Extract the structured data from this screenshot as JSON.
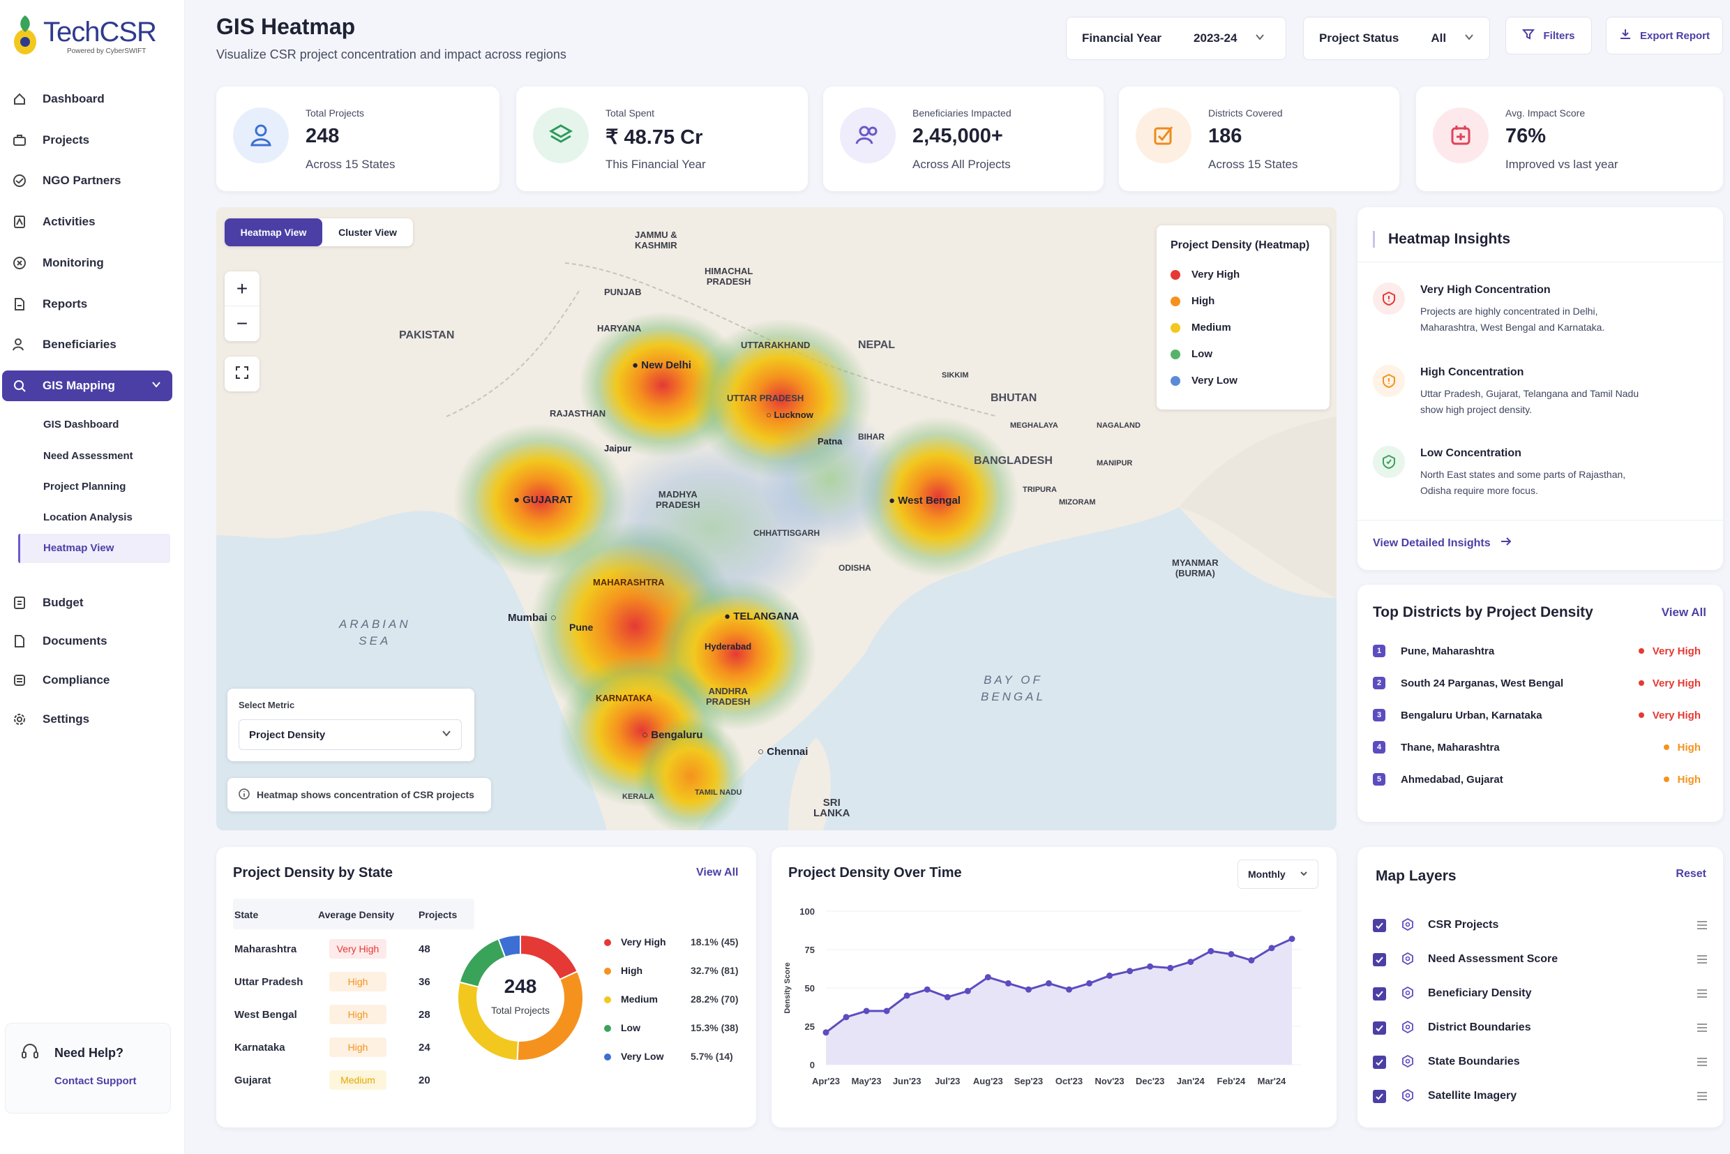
{
  "brand": {
    "name": "TechCSR",
    "tagline": "Powered by CyberSWIFT"
  },
  "sidebar": {
    "items": [
      {
        "label": "Dashboard",
        "icon": "home-icon"
      },
      {
        "label": "Projects",
        "icon": "briefcase-icon"
      },
      {
        "label": "NGO Partners",
        "icon": "handshake-icon"
      },
      {
        "label": "Activities",
        "icon": "activity-icon"
      },
      {
        "label": "Monitoring",
        "icon": "monitoring-icon"
      },
      {
        "label": "Reports",
        "icon": "report-icon"
      },
      {
        "label": "Beneficiaries",
        "icon": "users-icon"
      },
      {
        "label": "GIS Mapping",
        "icon": "map-pin-icon"
      },
      {
        "label": "Budget",
        "icon": "budget-icon"
      },
      {
        "label": "Documents",
        "icon": "document-icon"
      },
      {
        "label": "Compliance",
        "icon": "compliance-icon"
      },
      {
        "label": "Settings",
        "icon": "gear-icon"
      }
    ],
    "gis_sub": [
      "GIS Dashboard",
      "Need Assessment",
      "Project Planning",
      "Location Analysis",
      "Heatmap View"
    ],
    "help": {
      "title": "Need Help?",
      "link": "Contact Support"
    }
  },
  "header": {
    "title": "GIS Heatmap",
    "subtitle": "Visualize CSR project concentration and impact across regions",
    "fy_label": "Financial Year",
    "fy_value": "2023-24",
    "status_label": "Project Status",
    "status_value": "All",
    "filters": "Filters",
    "export": "Export Report"
  },
  "kpis": [
    {
      "label": "Total Projects",
      "value": "248",
      "note": "Across 15 States",
      "color": "#3b6fd4",
      "bg": "#e8effc"
    },
    {
      "label": "Total Spent",
      "value": "₹ 48.75 Cr",
      "note": "This Financial Year",
      "color": "#2e9b5c",
      "bg": "#e6f5ec"
    },
    {
      "label": "Beneficiaries Impacted",
      "value": "2,45,000+",
      "note": "Across All Projects",
      "color": "#6a58c8",
      "bg": "#efecfb"
    },
    {
      "label": "Districts Covered",
      "value": "186",
      "note": "Across 15 States",
      "color": "#f08a1c",
      "bg": "#fdf0e2"
    },
    {
      "label": "Avg. Impact Score",
      "value": "76%",
      "note": "Improved vs last year",
      "color": "#e0435a",
      "bg": "#fde9ec"
    }
  ],
  "map": {
    "tabs": [
      "Heatmap View",
      "Cluster View"
    ],
    "legend_title": "Project Density (Heatmap)",
    "legend": [
      {
        "label": "Very High",
        "color": "#e53935"
      },
      {
        "label": "High",
        "color": "#f5921e"
      },
      {
        "label": "Medium",
        "color": "#f2c81e"
      },
      {
        "label": "Low",
        "color": "#56b46a"
      },
      {
        "label": "Very Low",
        "color": "#5b8ad6"
      }
    ],
    "metric_label": "Select Metric",
    "metric_value": "Project Density",
    "note": "Heatmap shows concentration of CSR projects",
    "labels": {
      "jk": "JAMMU &\nKASHMIR",
      "hp": "HIMACHAL\nPRADESH",
      "punjab": "PUNJAB",
      "haryana": "HARYANA",
      "uk": "UTTARAKHAND",
      "pakistan": "PAKISTAN",
      "nepal": "NEPAL",
      "rajasthan": "RAJASTHAN",
      "up": "UTTAR PRADESH",
      "sikkim": "SIKKIM",
      "bhutan": "BHUTAN",
      "meghalaya": "MEGHALAYA",
      "nagaland": "NAGALAND",
      "bihar": "BIHAR",
      "bangladesh": "BANGLADESH",
      "manipur": "MANIPUR",
      "tripura": "TRIPURA",
      "mizoram": "MIZORAM",
      "mp": "MADHYA\nPRADESH",
      "chhattisgarh": "CHHATTISGARH",
      "odisha": "ODISHA",
      "myanmar": "MYANMAR\n(BURMA)",
      "maharashtra": "MAHARASHTRA",
      "arabian": "ARABIAN\nSEA",
      "ap": "ANDHRA\nPRADESH",
      "karnataka": "KARNATAKA",
      "bay": "BAY OF\nBENGAL",
      "kerala": "KERALA",
      "srilanka": "SRI\nLANKA",
      "tn": "TAMIL NADU"
    },
    "cities": {
      "delhi": "New Delhi",
      "lucknow": "Lucknow",
      "patna": "Patna",
      "jaipur": "Jaipur",
      "gujarat": "GUJARAT",
      "westbengal": "West Bengal",
      "mumbai": "Mumbai",
      "pune": "Pune",
      "telangana": "TELANGANA",
      "hyderabad": "Hyderabad",
      "bengaluru": "Bengaluru",
      "chennai": "Chennai"
    }
  },
  "insights": {
    "title": "Heatmap Insights",
    "items": [
      {
        "title": "Very High Concentration",
        "text": "Projects are highly concentrated in Delhi, Maharashtra, West Bengal and Karnataka.",
        "color": "#e53935",
        "bg": "#fdecec"
      },
      {
        "title": "High Concentration",
        "text": "Uttar Pradesh, Gujarat, Telangana and Tamil Nadu show high project density.",
        "color": "#f5921e",
        "bg": "#fef3e6"
      },
      {
        "title": "Low Concentration",
        "text": "North East states and some parts of Rajasthan, Odisha require more focus.",
        "color": "#3aa35a",
        "bg": "#e8f6ec"
      }
    ],
    "link": "View Detailed Insights"
  },
  "top_districts": {
    "title": "Top Districts by Project Density",
    "view_all": "View All",
    "rows": [
      {
        "n": "1",
        "name": "Pune, Maharashtra",
        "level": "Very High",
        "color": "#e53935"
      },
      {
        "n": "2",
        "name": "South 24 Parganas, West Bengal",
        "level": "Very High",
        "color": "#e53935"
      },
      {
        "n": "3",
        "name": "Bengaluru Urban, Karnataka",
        "level": "Very High",
        "color": "#e53935"
      },
      {
        "n": "4",
        "name": "Thane, Maharashtra",
        "level": "High",
        "color": "#f5921e"
      },
      {
        "n": "5",
        "name": "Ahmedabad, Gujarat",
        "level": "High",
        "color": "#f5921e"
      }
    ]
  },
  "state_density": {
    "title": "Project Density by State",
    "view_all": "View All",
    "headers": [
      "State",
      "Average Density",
      "Projects"
    ],
    "rows": [
      {
        "state": "Maharashtra",
        "density": "Very High",
        "projects": "48",
        "color": "#e53935",
        "bg": "#fdeaea"
      },
      {
        "state": "Uttar Pradesh",
        "density": "High",
        "projects": "36",
        "color": "#f5921e",
        "bg": "#fef1e2"
      },
      {
        "state": "West Bengal",
        "density": "High",
        "projects": "28",
        "color": "#f5921e",
        "bg": "#fef1e2"
      },
      {
        "state": "Karnataka",
        "density": "High",
        "projects": "24",
        "color": "#f5921e",
        "bg": "#fef1e2"
      },
      {
        "state": "Gujarat",
        "density": "Medium",
        "projects": "20",
        "color": "#e0a800",
        "bg": "#fdf6dc"
      }
    ],
    "donut": {
      "total": "248",
      "total_label": "Total Projects"
    },
    "donut_legend": [
      {
        "label": "Very High",
        "value": "18.1% (45)",
        "color": "#e53935",
        "pct": 18.1
      },
      {
        "label": "High",
        "value": "32.7% (81)",
        "color": "#f5921e",
        "pct": 32.7
      },
      {
        "label": "Medium",
        "value": "28.2% (70)",
        "color": "#f2c81e",
        "pct": 28.2
      },
      {
        "label": "Low",
        "value": "15.3% (38)",
        "color": "#3aa35a",
        "pct": 15.3
      },
      {
        "label": "Very Low",
        "value": "5.7% (14)",
        "color": "#3b6fd4",
        "pct": 5.7
      }
    ]
  },
  "density_time": {
    "title": "Project Density Over Time",
    "period": "Monthly"
  },
  "chart_data": {
    "type": "area",
    "title": "Project Density Over Time",
    "ylabel": "Density Score",
    "xlabel": "",
    "ylim": [
      0,
      100
    ],
    "yticks": [
      0,
      25,
      50,
      75,
      100
    ],
    "x_ticks": [
      "Apr'23",
      "May'23",
      "Jun'23",
      "Jul'23",
      "Aug'23",
      "Sep'23",
      "Oct'23",
      "Nov'23",
      "Dec'23",
      "Jan'24",
      "Feb'24",
      "Mar'24"
    ],
    "series": [
      {
        "values": [
          21,
          31,
          35,
          35,
          45,
          49,
          44,
          48,
          57,
          53,
          49,
          53,
          49,
          53,
          58,
          61,
          64,
          63,
          67,
          74,
          72,
          68,
          76,
          82
        ],
        "color": "#5b4cc0"
      }
    ]
  },
  "layers": {
    "title": "Map Layers",
    "reset": "Reset",
    "items": [
      "CSR Projects",
      "Need Assessment Score",
      "Beneficiary Density",
      "District Boundaries",
      "State Boundaries",
      "Satellite Imagery"
    ]
  }
}
